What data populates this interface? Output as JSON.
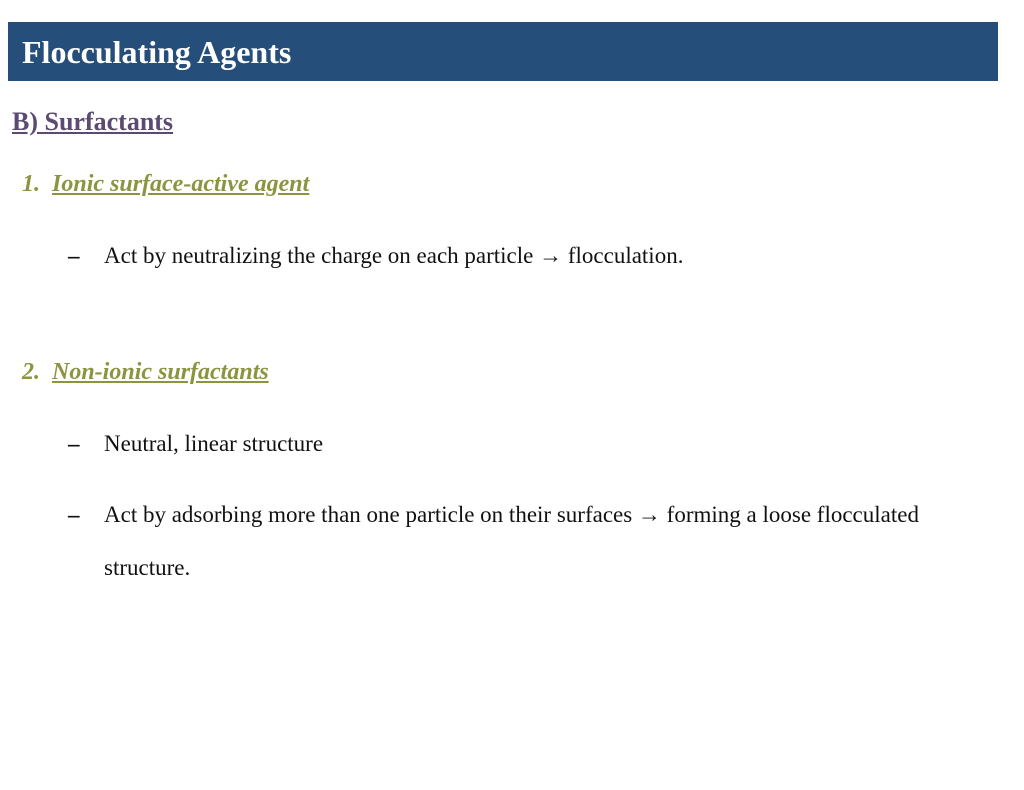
{
  "title": "Flocculating Agents",
  "section": "B) Surfactants",
  "items": [
    {
      "num": "1.",
      "heading": "Ionic surface-active agent",
      "bullets": [
        "Act by neutralizing the charge on each particle → flocculation."
      ]
    },
    {
      "num": "2.",
      "heading": "Non-ionic surfactants",
      "bullets": [
        "Neutral, linear structure",
        "Act by adsorbing more than one particle on their surfaces → forming a loose flocculated structure."
      ]
    }
  ],
  "colors": {
    "title_bg": "#254e7b",
    "title_fg": "#ffffff",
    "section_fg": "#5b4a72",
    "item_fg": "#8c9440",
    "body_fg": "#111111",
    "page_bg": "#ffffff"
  },
  "fonts": {
    "title_size": 32,
    "section_size": 26,
    "item_size": 24,
    "body_size": 23
  }
}
